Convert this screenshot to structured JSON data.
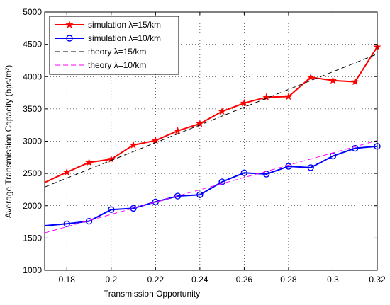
{
  "chart_data": {
    "type": "line",
    "xlabel": "Transmission Opportunity",
    "ylabel": "Average Transmission Capacity  (bps/m²)",
    "xlim": [
      0.17,
      0.32
    ],
    "ylim": [
      1000,
      5000
    ],
    "xticks": [
      "0.18",
      "0.2",
      "0.22",
      "0.24",
      "0.26",
      "0.28",
      "0.3",
      "0.32"
    ],
    "xtick_values": [
      0.18,
      0.2,
      0.22,
      0.24,
      0.26,
      0.28,
      0.3,
      0.32
    ],
    "yticks": [
      "1000",
      "1500",
      "2000",
      "2500",
      "3000",
      "3500",
      "4000",
      "4500",
      "5000"
    ],
    "ytick_values": [
      1000,
      1500,
      2000,
      2500,
      3000,
      3500,
      4000,
      4500,
      5000
    ],
    "grid": true,
    "legend_position": "top-left",
    "series": [
      {
        "name": "simulation λ=15/km",
        "color": "#ff0000",
        "style": "solid",
        "marker": "star",
        "x": [
          0.17,
          0.18,
          0.19,
          0.2,
          0.21,
          0.22,
          0.23,
          0.24,
          0.25,
          0.26,
          0.27,
          0.28,
          0.29,
          0.3,
          0.31,
          0.32
        ],
        "y": [
          2360,
          2520,
          2670,
          2720,
          2940,
          3010,
          3160,
          3270,
          3460,
          3590,
          3680,
          3690,
          3990,
          3940,
          3920,
          4460
        ]
      },
      {
        "name": "simulation λ=10/km",
        "color": "#0000ff",
        "style": "solid",
        "marker": "circle",
        "x": [
          0.17,
          0.18,
          0.19,
          0.2,
          0.21,
          0.22,
          0.23,
          0.24,
          0.25,
          0.26,
          0.27,
          0.28,
          0.29,
          0.3,
          0.31,
          0.32
        ],
        "y": [
          1690,
          1720,
          1760,
          1940,
          1960,
          2060,
          2150,
          2170,
          2370,
          2510,
          2490,
          2610,
          2590,
          2770,
          2890,
          2920
        ]
      },
      {
        "name": "theory λ=15/km",
        "color": "#000000",
        "style": "dashed",
        "marker": "none",
        "x": [
          0.17,
          0.32
        ],
        "y": [
          2290,
          4350
        ]
      },
      {
        "name": "theory λ=10/km",
        "color": "#ff00ff",
        "style": "dashed",
        "marker": "none",
        "x": [
          0.17,
          0.32
        ],
        "y": [
          1580,
          3010
        ]
      }
    ]
  }
}
